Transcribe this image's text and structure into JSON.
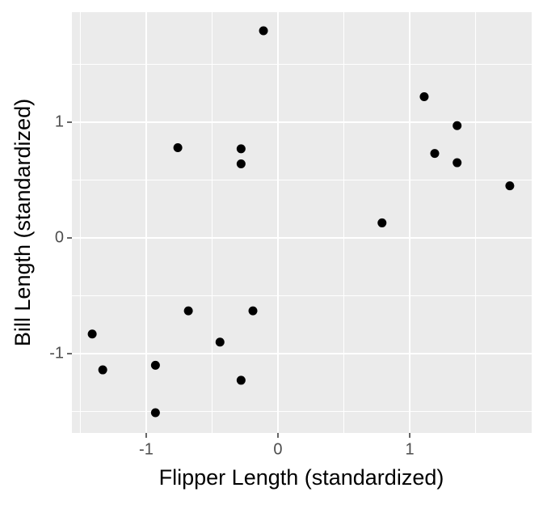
{
  "chart_data": {
    "type": "scatter",
    "x_label": "Flipper Length (standardized)",
    "y_label": "Bill Length (standardized)",
    "x": [
      -0.11,
      -0.76,
      -0.28,
      -0.28,
      1.11,
      1.36,
      1.19,
      1.36,
      1.76,
      0.79,
      -0.68,
      -0.19,
      -1.41,
      -0.44,
      -1.33,
      -0.93,
      -0.28,
      -0.93
    ],
    "values": [
      1.79,
      0.78,
      0.77,
      0.64,
      1.22,
      0.97,
      0.73,
      0.65,
      0.45,
      0.13,
      -0.63,
      -0.63,
      -0.83,
      -0.9,
      -1.14,
      -1.1,
      -1.23,
      -1.51
    ],
    "color": "#000000",
    "xlim": [
      -1.564,
      1.926
    ],
    "ylim": [
      -1.685,
      1.951
    ],
    "xticks": [
      -1,
      0,
      1
    ],
    "yticks": [
      -1,
      0,
      1
    ],
    "x_minor_ticks": [
      -1.5,
      -0.5,
      0.5,
      1.5
    ],
    "y_minor_ticks": [
      -1.5,
      -0.5,
      0.5,
      1.5
    ],
    "grid": true
  }
}
